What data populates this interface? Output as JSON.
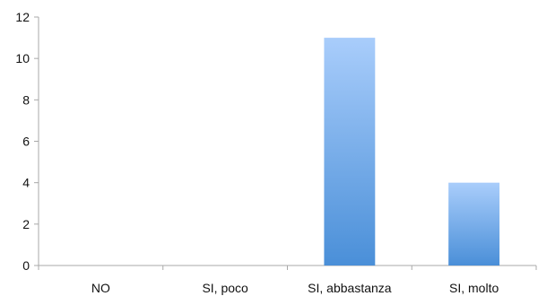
{
  "chart_data": {
    "type": "bar",
    "categories": [
      "NO",
      "SI, poco",
      "SI, abbastanza",
      "SI, molto"
    ],
    "values": [
      0,
      0,
      11,
      4
    ],
    "yticks": [
      0,
      2,
      4,
      6,
      8,
      10,
      12
    ],
    "ylim": [
      0,
      12
    ],
    "grid": false,
    "legend": "none",
    "bar_color_top": "#a9cdfb",
    "bar_color_bottom": "#4a8fd8",
    "axis_color": "#a8a8a8"
  }
}
